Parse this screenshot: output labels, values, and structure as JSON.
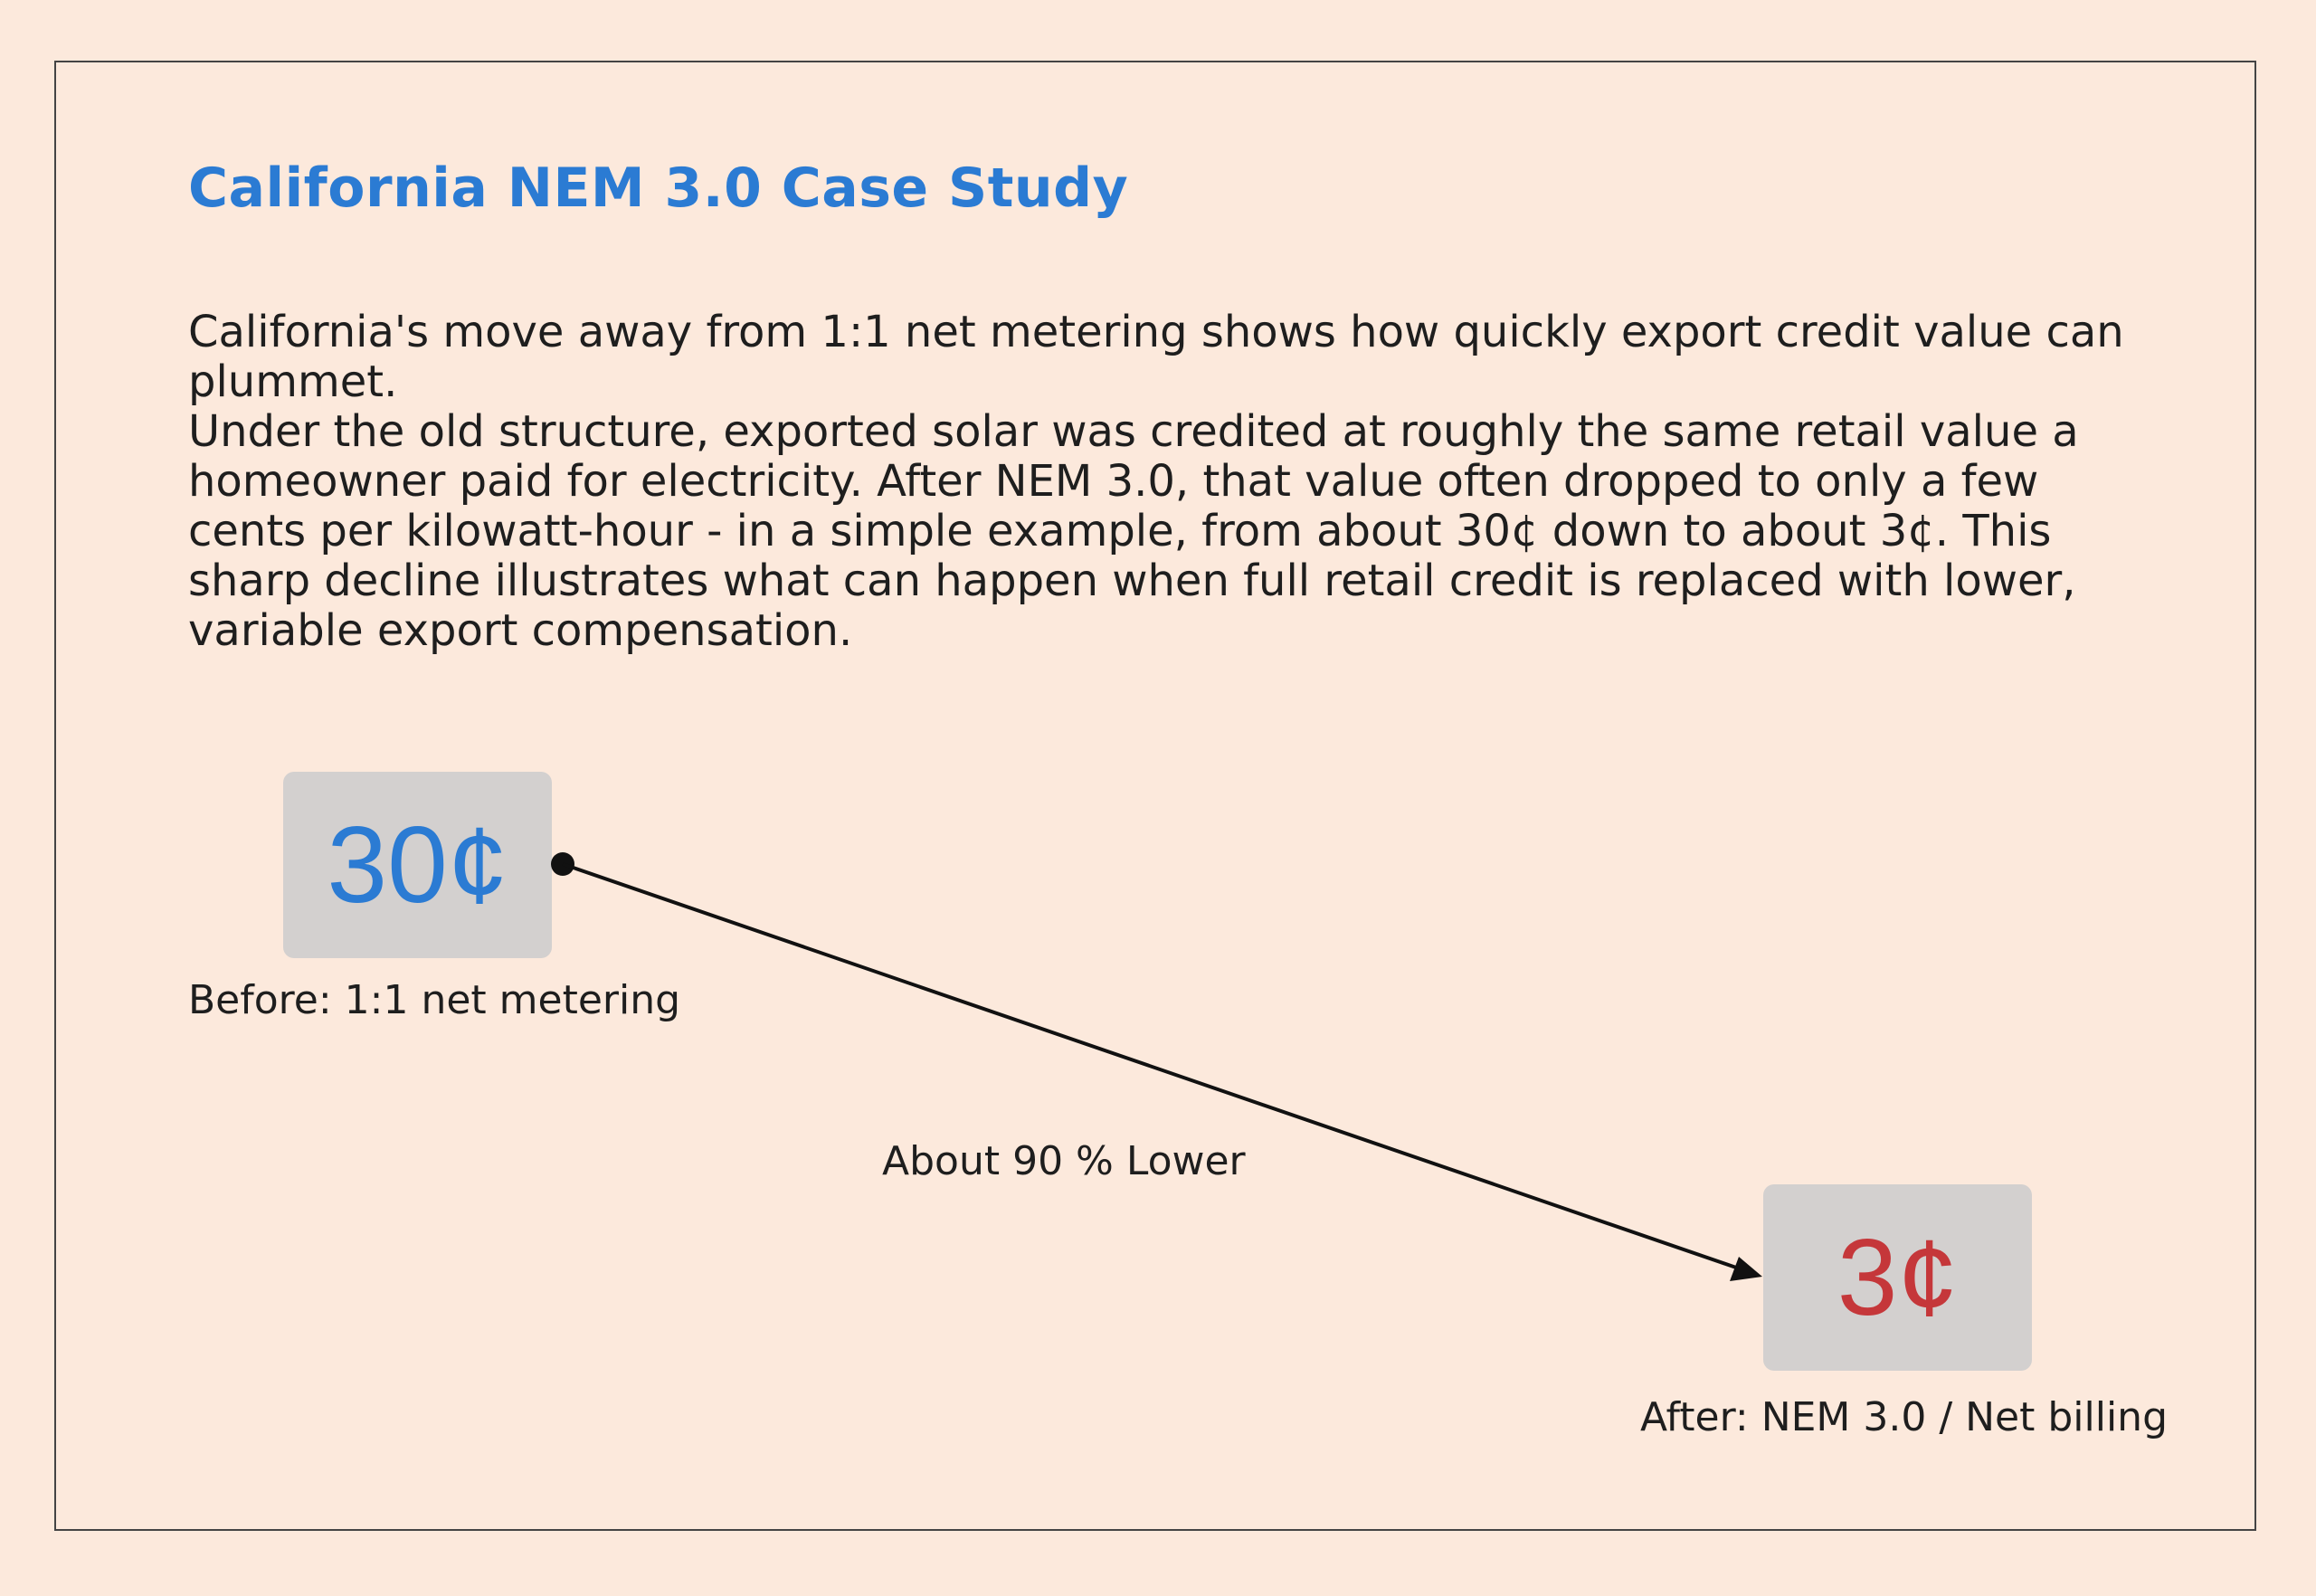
{
  "title": "California NEM 3.0 Case Study",
  "paragraphs": [
    "California's move away from 1:1 net metering shows how quickly export credit value can plummet.",
    "Under the old structure, exported solar was credited at roughly the same retail value a homeowner paid for electricity. After NEM 3.0, that value often dropped to only a few cents per kilowatt-hour - in a simple example, from about 30¢ down to about 3¢. This sharp decline illustrates what can happen when full retail credit is replaced with lower, variable export compensation."
  ],
  "before": {
    "value": "30¢",
    "caption": "Before: 1:1 net metering",
    "color": "#2b7bd3"
  },
  "after": {
    "value": "3¢",
    "caption": "After: NEM 3.0 / Net billing",
    "color": "#c5373a"
  },
  "change_label": "About 90 % Lower",
  "colors": {
    "background": "#fce9dc",
    "title": "#2b7bd3",
    "box": "#d3d0cf",
    "arrow": "#111111"
  }
}
